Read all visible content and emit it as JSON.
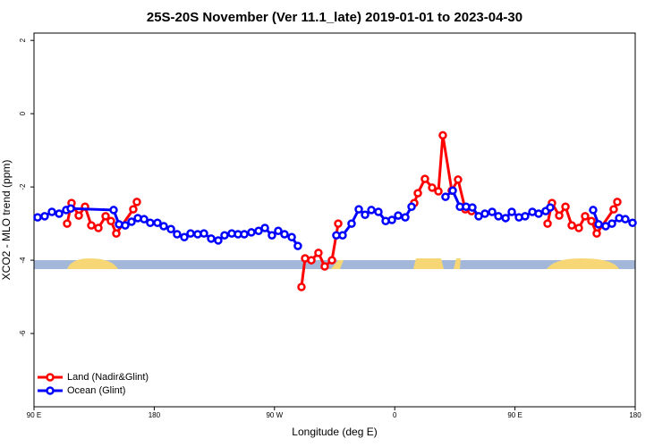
{
  "chart_data": {
    "type": "line",
    "title": "25S-20S November (Ver 11.1_late)   2019-01-01 to 2023-04-30",
    "x_label": "Longitude (deg E)",
    "y_label": "XCO2 - MLO trend (ppm)",
    "xlim": [
      90,
      540
    ],
    "xticks": [
      {
        "value": 90,
        "label": "90 E"
      },
      180,
      {
        "value": 270,
        "label": "90 W"
      },
      {
        "value": 360,
        "label": "0"
      },
      {
        "value": 450,
        "label": "90 E"
      },
      180
    ],
    "ylim": [
      -8,
      2.2
    ],
    "yticks": [
      2,
      0,
      -2,
      -4,
      -6
    ],
    "legend": "bottom-left",
    "series": [
      {
        "name": "Land (Nadir&Glint)",
        "color": "#ff0000",
        "x": [
          114.8,
          118.1,
          123.5,
          128.2,
          132.9,
          138.2,
          143.6,
          147.6,
          151.6,
          164.3,
          167,
          230,
          290.2,
          292.9,
          297.6,
          302.9,
          307.6,
          313,
          317.7,
          345,
          374.6,
          377.3,
          382.6,
          388,
          392.7,
          396,
          402.7,
          407.4,
          412.8,
          417.5,
          445,
          474.4,
          477.7,
          483.1,
          487.8,
          492.5,
          497.8,
          502.5,
          507.2,
          511.2,
          523.9,
          526.6
        ],
        "values": [
          -3.0,
          -2.44,
          -2.78,
          -2.54,
          -3.05,
          -3.12,
          -2.8,
          -2.93,
          -3.27,
          -2.61,
          -2.41,
          null,
          -4.73,
          -3.95,
          -4.0,
          -3.8,
          -4.17,
          -4.0,
          -3.0,
          null,
          -2.44,
          -2.17,
          -1.78,
          -2.02,
          -2.12,
          -0.59,
          -2.1,
          -1.8,
          -2.61,
          -2.66,
          null,
          -3.0,
          -2.44,
          -2.78,
          -2.54,
          -3.05,
          -3.12,
          -2.8,
          -2.93,
          -3.27,
          -2.61,
          -2.41
        ]
      },
      {
        "name": "Ocean (Glint)",
        "color": "#0000ff",
        "x": [
          92.7,
          98,
          103.4,
          108.8,
          114.1,
          117.5,
          149.6,
          153.6,
          158.3,
          163,
          167.7,
          172.4,
          177,
          182.4,
          187.1,
          192.5,
          197.1,
          202.5,
          207.2,
          212.5,
          217.2,
          222.6,
          227.9,
          232.6,
          238,
          242.7,
          247.4,
          252.7,
          258.1,
          262.8,
          268.1,
          272.8,
          277.5,
          282.9,
          287.5,
          302,
          316.3,
          321,
          327.7,
          333.1,
          337.8,
          342.5,
          347.8,
          353.2,
          357.9,
          362.6,
          367.9,
          372.6,
          385,
          398,
          403.4,
          408.8,
          413.4,
          418.1,
          422.8,
          427.5,
          432.9,
          437.6,
          443,
          447.6,
          453,
          457.6,
          463,
          467.7,
          473,
          476.4,
          492,
          508.5,
          512.6,
          517.9,
          522.6,
          528,
          532.6,
          538
        ],
        "values": [
          -2.83,
          -2.8,
          -2.68,
          -2.73,
          -2.63,
          -2.59,
          -2.63,
          -3.02,
          -3.05,
          -2.95,
          -2.85,
          -2.88,
          -2.98,
          -2.98,
          -3.07,
          -3.15,
          -3.29,
          -3.37,
          -3.27,
          -3.29,
          -3.27,
          -3.41,
          -3.46,
          -3.32,
          -3.27,
          -3.29,
          -3.29,
          -3.24,
          -3.2,
          -3.12,
          -3.32,
          -3.2,
          -3.29,
          -3.37,
          -3.61,
          null,
          -3.32,
          -3.32,
          -3.0,
          -2.61,
          -2.76,
          -2.63,
          -2.68,
          -2.93,
          -2.9,
          -2.78,
          -2.83,
          -2.54,
          null,
          -2.27,
          -2.1,
          -2.54,
          -2.54,
          -2.56,
          -2.8,
          -2.73,
          -2.68,
          -2.8,
          -2.85,
          -2.68,
          -2.83,
          -2.8,
          -2.68,
          -2.73,
          -2.66,
          -2.56,
          null,
          -2.63,
          -3.02,
          -3.07,
          -3.0,
          -2.85,
          -2.88,
          -2.98
        ]
      }
    ]
  }
}
